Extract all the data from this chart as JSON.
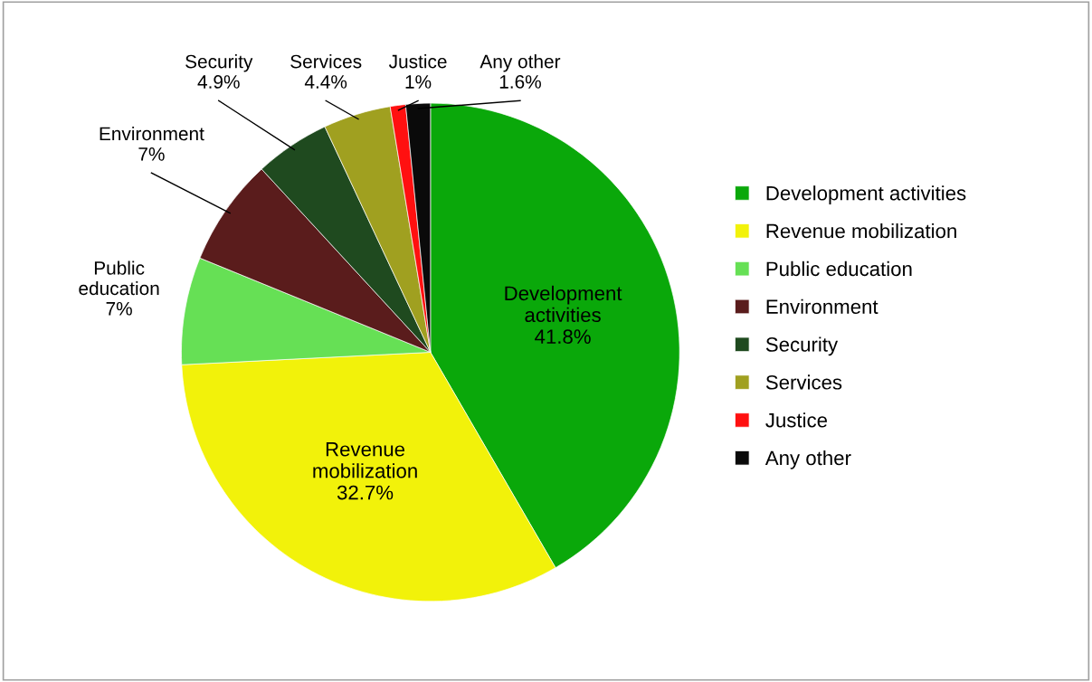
{
  "chart_data": {
    "type": "pie",
    "categories": [
      "Development activities",
      "Revenue mobilization",
      "Public education",
      "Environment",
      "Security",
      "Services",
      "Justice",
      "Any other"
    ],
    "values": [
      41.8,
      32.7,
      7,
      7,
      4.9,
      4.4,
      1,
      1.6
    ],
    "value_labels": [
      "41.8%",
      "32.7%",
      "7%",
      "7%",
      "4.9%",
      "4.4%",
      "1%",
      "1.6%"
    ],
    "colors": [
      "#0aa80a",
      "#f2f20a",
      "#66e055",
      "#5a1c1c",
      "#1f4a1f",
      "#a0a020",
      "#ff1010",
      "#0a0a0a"
    ],
    "legend": "right"
  }
}
